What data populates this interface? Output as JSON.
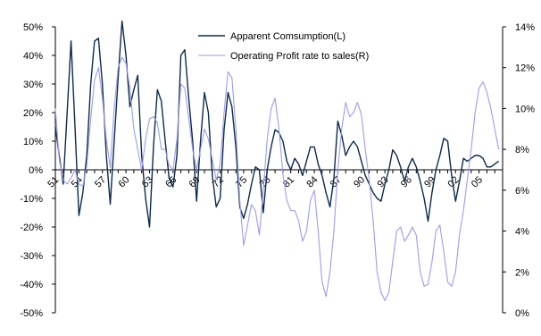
{
  "chart_data": {
    "type": "line",
    "title": "",
    "xlabel": "",
    "x_tick_labels": [
      "51",
      "54",
      "57",
      "60",
      "63",
      "66",
      "69",
      "72",
      "75",
      "78",
      "81",
      "84",
      "87",
      "90",
      "93",
      "96",
      "99",
      "02",
      "05"
    ],
    "left_axis": {
      "ylim": [
        -50,
        50
      ],
      "ticks": [
        -50,
        -40,
        -30,
        -20,
        -10,
        0,
        10,
        20,
        30,
        40,
        50
      ],
      "unit": "%"
    },
    "right_axis": {
      "ylim": [
        0,
        14
      ],
      "ticks": [
        0,
        2,
        4,
        6,
        8,
        10,
        12,
        14
      ],
      "unit": "%"
    },
    "x_range": [
      1951,
      2008
    ],
    "legend": {
      "placement": "top-center"
    },
    "grid": false,
    "series": [
      {
        "name": "Apparent Comsumption(L)",
        "axis": "left",
        "color": "#0d2a4a",
        "x": [
          1951,
          1951.5,
          1952,
          1952.5,
          1953,
          1953.5,
          1954,
          1954.5,
          1955,
          1955.5,
          1956,
          1956.5,
          1957,
          1957.5,
          1958,
          1958.5,
          1959,
          1959.5,
          1960,
          1960.5,
          1961,
          1961.5,
          1962,
          1962.5,
          1963,
          1963.5,
          1964,
          1964.5,
          1965,
          1965.5,
          1966,
          1966.5,
          1967,
          1967.5,
          1968,
          1968.5,
          1969,
          1969.5,
          1970,
          1970.5,
          1971,
          1971.5,
          1972,
          1972.5,
          1973,
          1973.5,
          1974,
          1974.5,
          1975,
          1975.5,
          1976,
          1976.5,
          1977,
          1977.5,
          1978,
          1978.5,
          1979,
          1979.5,
          1980,
          1980.5,
          1981,
          1981.5,
          1982,
          1982.5,
          1983,
          1983.5,
          1984,
          1984.5,
          1985,
          1985.5,
          1986,
          1986.5,
          1987,
          1987.5,
          1988,
          1988.5,
          1989,
          1989.5,
          1990,
          1990.5,
          1991,
          1991.5,
          1992,
          1992.5,
          1993,
          1993.5,
          1994,
          1994.5,
          1995,
          1995.5,
          1996,
          1996.5,
          1997,
          1997.5,
          1998,
          1998.5,
          1999,
          1999.5,
          2000,
          2000.5,
          2001,
          2001.5,
          2002,
          2002.5,
          2003,
          2003.5,
          2004,
          2004.5,
          2005,
          2005.5,
          2006,
          2006.5,
          2007,
          2007.5
        ],
        "values": [
          15,
          5,
          -5,
          20,
          45,
          15,
          -16,
          -8,
          5,
          30,
          45,
          46,
          30,
          5,
          -12,
          10,
          32,
          52,
          40,
          22,
          28,
          33,
          5,
          -10,
          -20,
          8,
          28,
          24,
          10,
          -3,
          -6,
          5,
          40,
          42,
          25,
          10,
          -11,
          10,
          27,
          20,
          -2,
          -13,
          -10,
          14,
          27,
          22,
          8,
          -13,
          -17,
          -12,
          -5,
          1,
          0,
          -15,
          0,
          8,
          14,
          13,
          10,
          3,
          0,
          4,
          2,
          -2,
          3,
          8,
          8,
          2,
          -2,
          -8,
          -13,
          -3,
          17,
          12,
          5,
          8,
          10,
          8,
          3,
          -2,
          -5,
          -8,
          -10,
          -11,
          -5,
          0,
          7,
          5,
          1,
          -4,
          1,
          4,
          1,
          -4,
          -10,
          -18,
          -8,
          0,
          5,
          11,
          10,
          -2,
          -11,
          -4,
          4,
          3,
          4,
          5,
          5,
          4,
          1,
          1,
          2,
          3
        ],
        "values_note": ""
      },
      {
        "name": "Operating Profit rate to sales(R)",
        "axis": "right",
        "color": "#9d9de8",
        "x": [
          1951,
          1951.5,
          1952,
          1952.5,
          1953,
          1953.5,
          1954,
          1954.5,
          1955,
          1955.5,
          1956,
          1956.5,
          1957,
          1957.5,
          1958,
          1958.5,
          1959,
          1959.5,
          1960,
          1960.5,
          1961,
          1961.5,
          1962,
          1962.5,
          1963,
          1963.5,
          1964,
          1964.5,
          1965,
          1965.5,
          1966,
          1966.5,
          1967,
          1967.5,
          1968,
          1968.5,
          1969,
          1969.5,
          1970,
          1970.5,
          1971,
          1971.5,
          1972,
          1972.5,
          1973,
          1973.5,
          1974,
          1974.5,
          1975,
          1975.5,
          1976,
          1976.5,
          1977,
          1977.5,
          1978,
          1978.5,
          1979,
          1979.5,
          1980,
          1980.5,
          1981,
          1981.5,
          1982,
          1982.5,
          1983,
          1983.5,
          1984,
          1984.5,
          1985,
          1985.5,
          1986,
          1986.5,
          1987,
          1987.5,
          1988,
          1988.5,
          1989,
          1989.5,
          1990,
          1990.5,
          1991,
          1991.5,
          1992,
          1992.5,
          1993,
          1993.5,
          1994,
          1994.5,
          1995,
          1995.5,
          1996,
          1996.5,
          1997,
          1997.5,
          1998,
          1998.5,
          1999,
          1999.5,
          2000,
          2000.5,
          2001,
          2001.5,
          2002,
          2002.5,
          2003,
          2003.5,
          2004,
          2004.5,
          2005,
          2005.5,
          2006,
          2006.5,
          2007,
          2007.5
        ],
        "values": [
          10,
          7.5,
          6.5,
          6.3,
          6.6,
          7.0,
          6.3,
          6.2,
          7.2,
          9.5,
          11.4,
          12.0,
          10.5,
          8.5,
          7.1,
          10.0,
          12.0,
          12.5,
          12.2,
          11.0,
          9.0,
          8.0,
          7.0,
          8.5,
          9.5,
          9.6,
          9.3,
          8.0,
          8.0,
          7.2,
          7.0,
          8.5,
          11.2,
          11.0,
          9.5,
          8.0,
          7.0,
          8.0,
          9.0,
          8.5,
          7.5,
          6.5,
          7.3,
          9.8,
          11.8,
          11.5,
          9.0,
          5.5,
          3.3,
          4.3,
          5.3,
          5.0,
          3.8,
          6.0,
          8.5,
          10.0,
          10.5,
          9.0,
          6.8,
          5.5,
          5.0,
          5.0,
          4.5,
          3.5,
          4.0,
          5.5,
          6.0,
          4.0,
          1.5,
          0.8,
          2.0,
          4.0,
          7.0,
          9.0,
          10.3,
          9.6,
          9.8,
          10.3,
          9.7,
          8.0,
          6.5,
          4.5,
          2.0,
          1.0,
          0.6,
          1.0,
          2.5,
          4.0,
          4.2,
          3.5,
          3.8,
          4.2,
          3.8,
          2.0,
          1.3,
          1.4,
          2.5,
          4.0,
          4.3,
          3.0,
          1.5,
          1.3,
          2.0,
          3.8,
          5.0,
          6.5,
          8.0,
          9.8,
          11.0,
          11.3,
          10.8,
          10.0,
          9.0,
          8.0
        ],
        "values_note": ""
      }
    ]
  }
}
